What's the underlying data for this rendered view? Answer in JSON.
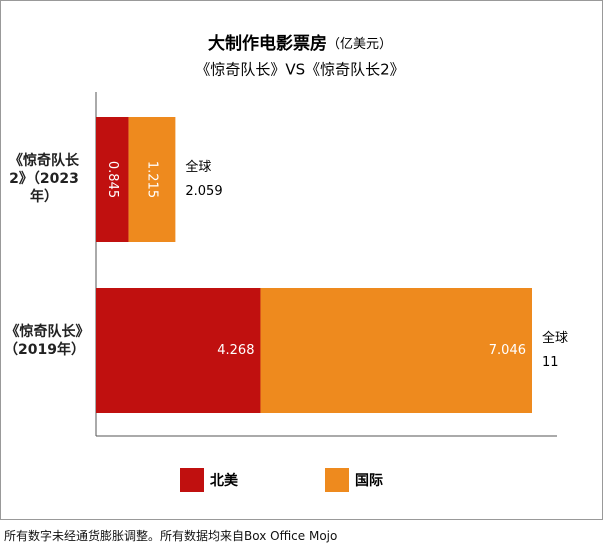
{
  "chart_data": {
    "type": "stacked-hbar",
    "title": "大制作电影票房",
    "title_unit": "（亿美元）",
    "subtitle": "《惊奇队长》VS《惊奇队长2》",
    "categories": [
      "《惊奇队长2》（2023年）",
      "《惊奇队长》（2019年）"
    ],
    "series": [
      {
        "name": "北美",
        "color": "#c0100f",
        "values": [
          0.845,
          4.268
        ]
      },
      {
        "name": "国际",
        "color": "#ee8a1e",
        "values": [
          1.215,
          7.046
        ]
      }
    ],
    "annotations": [
      {
        "label": "全球",
        "value": 2.059
      },
      {
        "label": "全球",
        "value": 11
      }
    ],
    "legend": "bottom",
    "footnote": "所有数字未经通货膨胀调整。所有数据均来自Box Office Mojo"
  }
}
